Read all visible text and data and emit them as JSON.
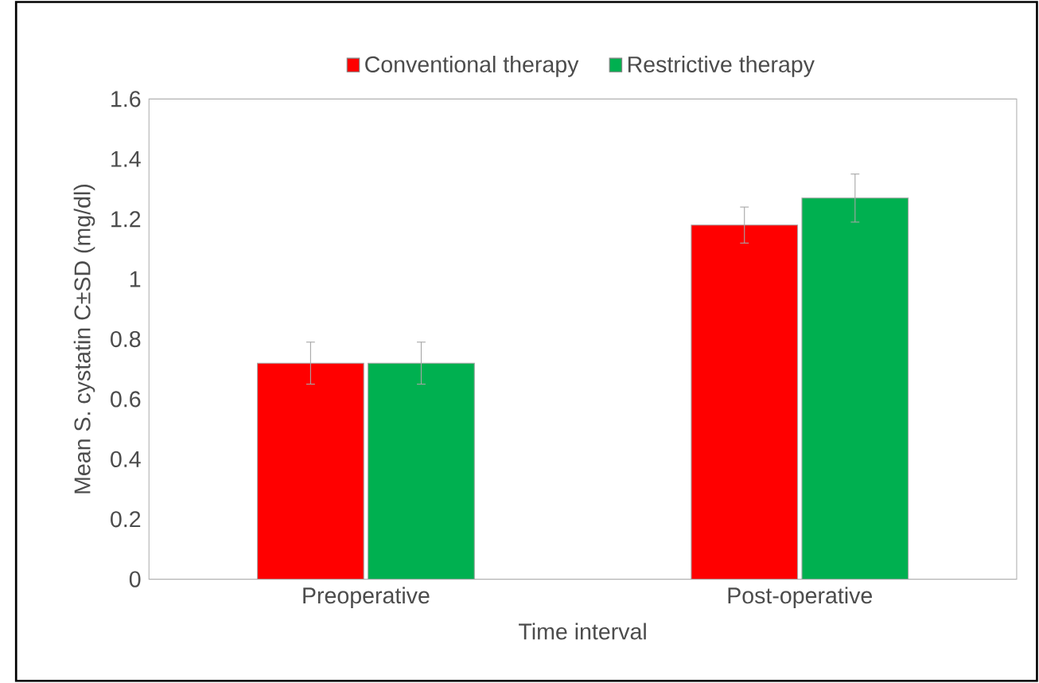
{
  "chart_data": {
    "type": "bar",
    "xlabel": "Time interval",
    "ylabel": "Mean S. cystatin C±SD (mg/dl)",
    "categories": [
      "Preoperative",
      "Post-operative"
    ],
    "series": [
      {
        "name": "Conventional therapy",
        "color": "#ff0000",
        "values": [
          0.72,
          1.18
        ],
        "errors": [
          0.07,
          0.06
        ]
      },
      {
        "name": "Restrictive therapy",
        "color": "#00b050",
        "values": [
          0.72,
          1.27
        ],
        "errors": [
          0.07,
          0.08
        ]
      }
    ],
    "ylim": [
      0,
      1.6
    ],
    "yticks": [
      0,
      0.2,
      0.4,
      0.6,
      0.8,
      1,
      1.2,
      1.4,
      1.6
    ],
    "legend": "top",
    "grid": false
  }
}
